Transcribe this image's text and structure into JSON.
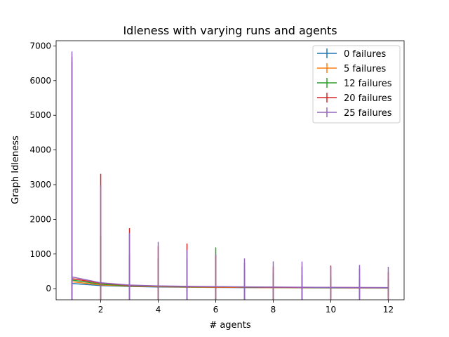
{
  "chart_data": {
    "type": "line",
    "title": "Idleness with varying runs and agents",
    "xlabel": "# agents",
    "ylabel": "Graph Idleness",
    "xlim": [
      0.45,
      12.55
    ],
    "ylim": [
      -320,
      7150
    ],
    "xticks": [
      2,
      4,
      6,
      8,
      10,
      12
    ],
    "yticks": [
      0,
      1000,
      2000,
      3000,
      4000,
      5000,
      6000,
      7000
    ],
    "legend_position": "top-right",
    "x": [
      1,
      2,
      3,
      4,
      5,
      6,
      7,
      8,
      9,
      10,
      11,
      12
    ],
    "series": [
      {
        "name": "0 failures",
        "color": "#1f77b4",
        "values": [
          150,
          90,
          65,
          50,
          42,
          36,
          32,
          28,
          26,
          24,
          22,
          20
        ],
        "errors": [
          50,
          30,
          20,
          15,
          12,
          10,
          9,
          8,
          7,
          7,
          6,
          6
        ]
      },
      {
        "name": "5 failures",
        "color": "#ff7f0e",
        "values": [
          200,
          110,
          75,
          58,
          48,
          42,
          36,
          32,
          30,
          27,
          25,
          23
        ],
        "errors": [
          400,
          150,
          80,
          60,
          50,
          40,
          35,
          30,
          28,
          25,
          22,
          20
        ]
      },
      {
        "name": "12 failures",
        "color": "#2ca02c",
        "values": [
          250,
          130,
          85,
          68,
          56,
          60,
          42,
          38,
          34,
          30,
          28,
          26
        ],
        "errors": [
          6300,
          1400,
          900,
          800,
          800,
          1130,
          500,
          400,
          350,
          300,
          280,
          250
        ]
      },
      {
        "name": "20 failures",
        "color": "#d62728",
        "values": [
          290,
          160,
          95,
          75,
          62,
          55,
          48,
          42,
          38,
          36,
          32,
          30
        ],
        "errors": [
          6400,
          3150,
          1650,
          1150,
          1240,
          900,
          700,
          600,
          600,
          630,
          550,
          450
        ]
      },
      {
        "name": "25 failures",
        "color": "#9467bd",
        "values": [
          340,
          170,
          105,
          80,
          68,
          60,
          52,
          46,
          42,
          38,
          35,
          32
        ],
        "errors": [
          6500,
          2800,
          1500,
          1270,
          1050,
          950,
          820,
          740,
          740,
          600,
          650,
          600
        ]
      }
    ]
  }
}
